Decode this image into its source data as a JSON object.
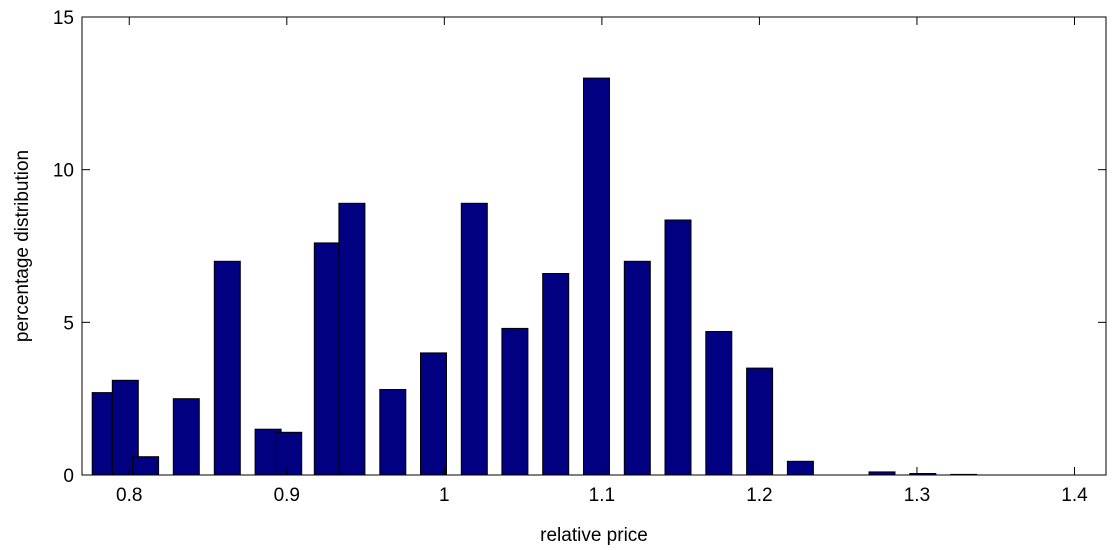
{
  "chart_data": {
    "type": "bar",
    "xlabel": "relative price",
    "ylabel": "percentage distribution",
    "xlim": [
      0.77,
      1.42
    ],
    "ylim": [
      0,
      15
    ],
    "xticks": [
      0.8,
      0.9,
      1.0,
      1.1,
      1.2,
      1.3,
      1.4
    ],
    "xtick_labels": [
      "0.8",
      "0.9",
      "1",
      "1.1",
      "1.2",
      "1.3",
      "1.4"
    ],
    "yticks": [
      0,
      5,
      10,
      15
    ],
    "ytick_labels": [
      "0",
      "5",
      "10",
      "15"
    ],
    "grid": false,
    "bar_color": "#000080",
    "series": [
      {
        "x": [
          0.7847,
          0.7975,
          0.8104,
          0.8362,
          0.8622,
          0.8881,
          0.9012,
          0.9257,
          0.9413,
          0.9673,
          0.9931,
          1.019,
          1.0448,
          1.0707,
          1.0966,
          1.1225,
          1.1483,
          1.1742,
          1.2001,
          1.226,
          1.2778,
          1.3037,
          1.3296
        ],
        "values": [
          2.7,
          3.1,
          0.6,
          2.5,
          7.0,
          1.5,
          1.4,
          7.6,
          8.9,
          2.8,
          4.0,
          8.9,
          4.8,
          6.6,
          13.0,
          7.0,
          8.35,
          4.7,
          3.5,
          0.45,
          0.1,
          0.05,
          0.02
        ]
      }
    ]
  }
}
